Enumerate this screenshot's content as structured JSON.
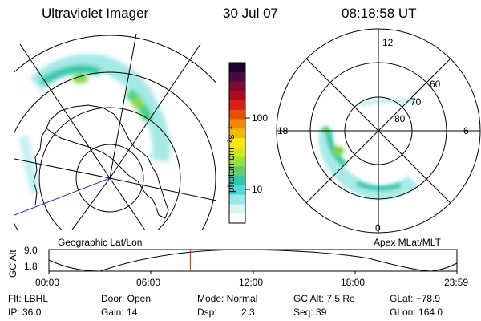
{
  "header": {
    "instrument": "Ultraviolet Imager",
    "date": "30 Jul 07",
    "time": "08:18:58 UT"
  },
  "left_panel": {
    "caption": "Geographic Lat/Lon"
  },
  "colorbar": {
    "unit": "photon cm⁻²s⁻¹",
    "ticks": [
      "100",
      "10"
    ],
    "colors": [
      "#ffffff",
      "#d8f4f4",
      "#9be8e8",
      "#55d6d6",
      "#2fc7b0",
      "#5fd070",
      "#9be03a",
      "#d4e818",
      "#f5e810",
      "#f0b808",
      "#f08a05",
      "#e84e05",
      "#d82012",
      "#b00a22",
      "#800a33",
      "#4a0a40",
      "#1a0530"
    ]
  },
  "right_panel": {
    "caption": "Apex MLat/MLT",
    "mlt_labels": [
      "12",
      "18",
      "6",
      "0"
    ],
    "mlat_labels": [
      "60",
      "70",
      "80"
    ]
  },
  "timeline": {
    "ylabel": "GC Alt",
    "yticks": [
      "9.0",
      "1.8"
    ],
    "xticks": [
      "00:00",
      "06:00",
      "12:00",
      "18:00",
      "23:59"
    ],
    "current_time_fraction": 0.3465
  },
  "status": {
    "flt": "Flt: LBHL",
    "ip": "IP: 36.0",
    "door": "Door: Open",
    "gain": "Gain: 14",
    "mode": "Mode: Normal",
    "dsp_label": "Dsp:",
    "dsp_value": "2.3",
    "gc_alt": "GC Alt: 7.5 Re",
    "seq": "Seq: 39",
    "glat": "GLat: −78.9",
    "glon": "GLon: 164.0"
  }
}
